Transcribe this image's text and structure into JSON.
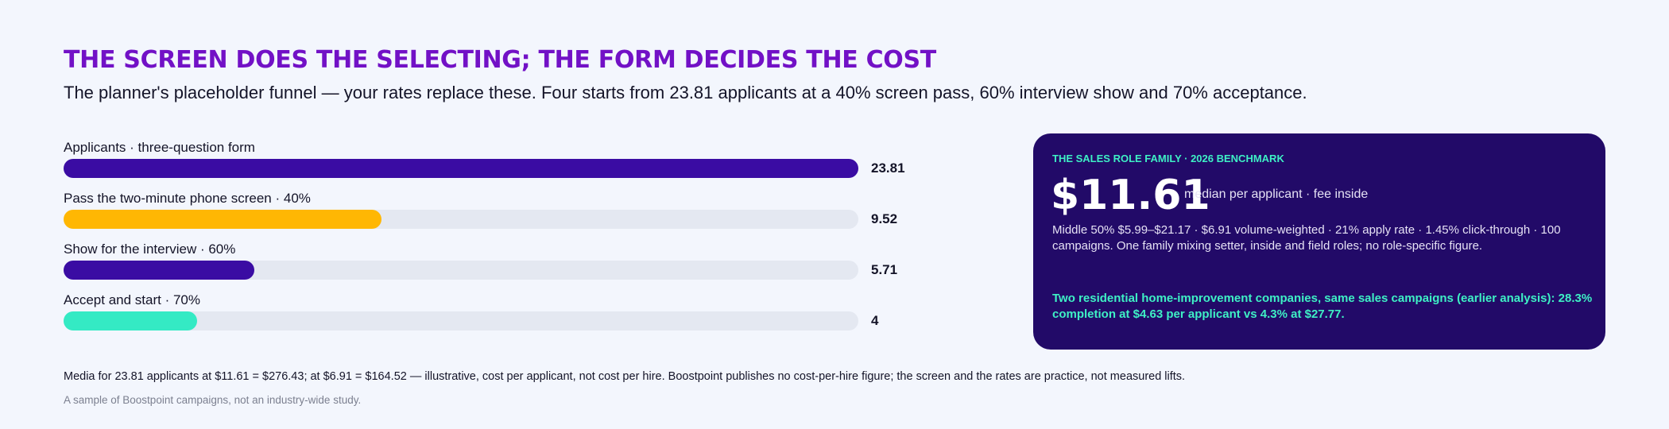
{
  "header": {
    "title": "THE SCREEN DOES THE SELECTING; THE FORM DECIDES THE COST",
    "subtitle": "The planner's placeholder funnel — your rates replace these. Four starts from 23.81 applicants at a 40% screen pass, 60% interview show and 70% acceptance."
  },
  "chart_data": {
    "type": "bar",
    "orientation": "horizontal",
    "categories": [
      "Applicants · three-question form",
      "Pass the two-minute phone screen · 40%",
      "Show for the interview · 60%",
      "Accept and start · 70%"
    ],
    "values": [
      23.81,
      9.52,
      5.71,
      4
    ],
    "value_labels": [
      "23.81",
      "9.52",
      "5.71",
      "4"
    ],
    "colors": [
      "#3a0ca3",
      "#ffb703",
      "#3a0ca3",
      "#34eac4"
    ],
    "xlim": [
      0,
      23.81
    ],
    "grid": false
  },
  "card": {
    "kicker": "THE SALES ROLE FAMILY · 2026 BENCHMARK",
    "big_value": "$11.61",
    "big_caption": "median per applicant · fee inside",
    "detail": "Middle 50% $5.99–$21.17 · $6.91 volume-weighted · 21% apply rate · 1.45% click-through · 100 campaigns. One family mixing setter, inside and field roles; no role-specific figure.",
    "note": "Two residential home-improvement companies, same sales campaigns (earlier analysis): 28.3% completion at $4.63 per applicant vs 4.3% at $27.77."
  },
  "footer": {
    "footnote": "Media for 23.81 applicants at $11.61 = $276.43; at $6.91 = $164.52 — illustrative, cost per applicant, not cost per hire. Boostpoint publishes no cost-per-hire figure; the screen and the rates are practice, not measured lifts.",
    "source": "A sample of Boostpoint campaigns, not an industry-wide study."
  },
  "colors": {
    "title": "#7211c6",
    "card_background": "#220a68",
    "accent_teal": "#3ef0c5",
    "track": "#e4e8f1"
  }
}
